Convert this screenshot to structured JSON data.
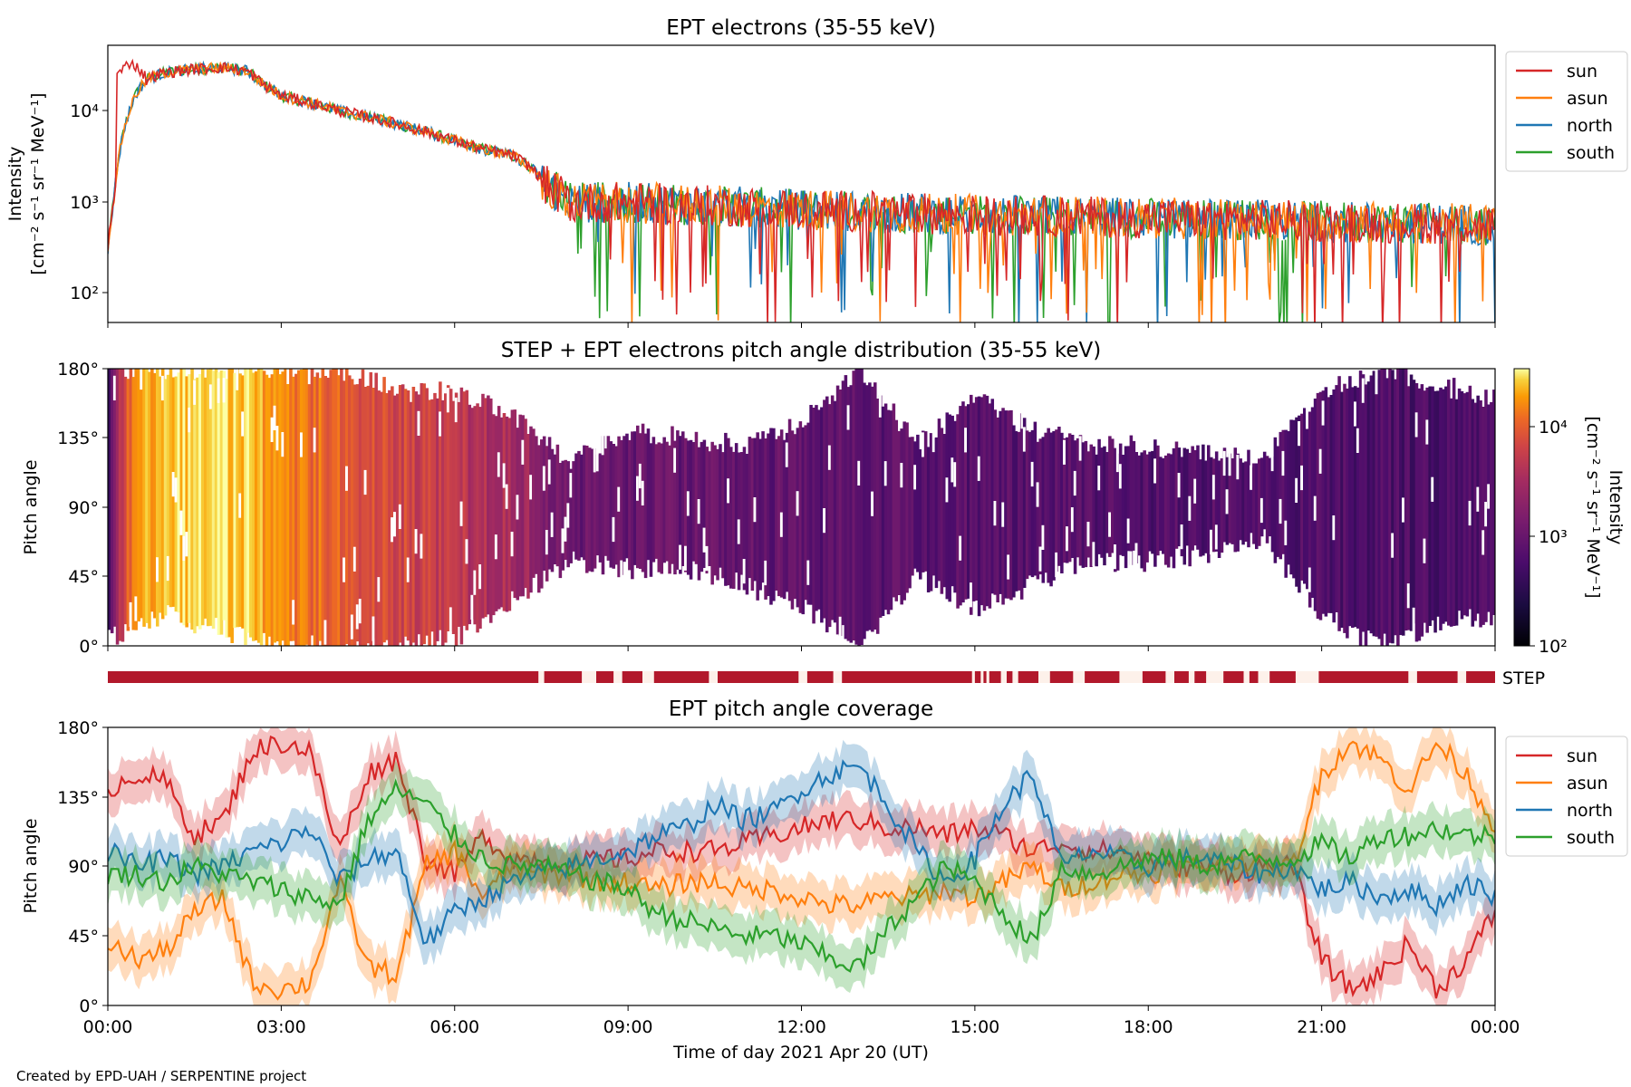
{
  "footer": "Created by EPD-UAH / SERPENTINE project",
  "xlabel": "Time of day 2021 Apr 20 (UT)",
  "x_ticks": [
    "00:00",
    "03:00",
    "06:00",
    "09:00",
    "12:00",
    "15:00",
    "18:00",
    "21:00",
    "00:00"
  ],
  "colors": {
    "sun": "#d62728",
    "asun": "#ff7f0e",
    "north": "#1f77b4",
    "south": "#2ca02c",
    "step_bar": "#b2182b"
  },
  "chart_data": [
    {
      "type": "line",
      "title": "EPT electrons (35-55 keV)",
      "ylabel_lines": [
        "Intensity",
        "[cm⁻² s⁻¹ sr⁻¹ MeV⁻¹]"
      ],
      "yscale": "log",
      "ylim": [
        50,
        45000
      ],
      "y_ticks": [
        "10²",
        "10³",
        "10⁴"
      ],
      "xlim_hours": [
        0,
        24
      ],
      "legend": {
        "placement": "outside-right",
        "entries": [
          "sun",
          "asun",
          "north",
          "south"
        ]
      },
      "profile_hours": [
        0.0,
        0.1,
        0.2,
        0.35,
        0.5,
        0.7,
        1.0,
        1.5,
        2.0,
        2.4,
        2.7,
        3.0,
        4.0,
        5.0,
        6.0,
        6.5,
        7.0,
        7.3,
        7.6,
        8.0,
        9.0,
        10.0,
        12.0,
        15.0,
        18.0,
        21.0,
        24.0
      ],
      "profile_values": [
        300,
        900,
        3000,
        8000,
        14000,
        20000,
        23000,
        25000,
        26000,
        24000,
        17000,
        13000,
        9000,
        6500,
        4300,
        3500,
        3000,
        2300,
        1400,
        950,
        950,
        900,
        800,
        700,
        650,
        600,
        550
      ],
      "series": [
        {
          "name": "sun",
          "peak": 30000,
          "peak_hour": 0.4
        },
        {
          "name": "asun",
          "peak": 24000,
          "peak_hour": 1.8
        },
        {
          "name": "north",
          "peak": 25000,
          "peak_hour": 1.7
        },
        {
          "name": "south",
          "peak": 23000,
          "peak_hour": 1.8
        }
      ]
    },
    {
      "type": "heatmap",
      "title": "STEP + EPT electrons pitch angle distribution (35-55 keV)",
      "ylabel": "Pitch angle",
      "y_ticks": [
        "0°",
        "45°",
        "90°",
        "135°",
        "180°"
      ],
      "ylim_deg": [
        0,
        180
      ],
      "colorbar": {
        "label": "Intensity",
        "unit": "[cm⁻² s⁻¹ sr⁻¹ MeV⁻¹]",
        "ticks": [
          "10²",
          "10³",
          "10⁴"
        ],
        "range": [
          100,
          30000
        ],
        "scale": "log",
        "colormap": "inferno"
      },
      "band_hours": [
        0,
        1,
        2,
        3,
        4,
        5,
        6,
        7,
        8,
        9,
        10,
        11,
        12,
        13,
        14,
        15,
        16,
        17,
        18,
        19,
        20,
        21,
        22,
        23,
        24
      ],
      "band_min_deg": [
        5,
        20,
        10,
        0,
        0,
        0,
        5,
        30,
        55,
        50,
        50,
        40,
        25,
        0,
        45,
        25,
        40,
        55,
        55,
        60,
        70,
        20,
        0,
        15,
        20
      ],
      "band_max_deg": [
        180,
        180,
        180,
        180,
        180,
        165,
        165,
        150,
        120,
        140,
        135,
        130,
        145,
        180,
        130,
        160,
        140,
        130,
        130,
        125,
        120,
        165,
        180,
        170,
        160
      ]
    },
    {
      "type": "bar",
      "label": "STEP",
      "coverage_hours": [
        [
          0.0,
          7.45
        ],
        [
          7.55,
          8.2
        ],
        [
          8.45,
          8.75
        ],
        [
          8.9,
          9.25
        ],
        [
          9.45,
          10.4
        ],
        [
          10.55,
          11.95
        ],
        [
          12.1,
          12.55
        ],
        [
          12.7,
          14.95
        ],
        [
          15.0,
          15.1
        ],
        [
          15.15,
          15.2
        ],
        [
          15.25,
          15.45
        ],
        [
          15.55,
          15.65
        ],
        [
          15.75,
          16.1
        ],
        [
          16.3,
          16.7
        ],
        [
          16.9,
          17.5
        ],
        [
          17.9,
          18.3
        ],
        [
          18.45,
          18.7
        ],
        [
          18.8,
          19.0
        ],
        [
          19.3,
          19.65
        ],
        [
          19.75,
          19.9
        ],
        [
          20.1,
          20.55
        ],
        [
          20.95,
          22.5
        ],
        [
          22.65,
          23.35
        ],
        [
          23.5,
          24.0
        ]
      ]
    },
    {
      "type": "line",
      "title": "EPT pitch angle coverage",
      "ylabel": "Pitch angle",
      "y_ticks": [
        "0°",
        "45°",
        "90°",
        "135°",
        "180°"
      ],
      "ylim_deg": [
        0,
        180
      ],
      "xlim_hours": [
        0,
        24
      ],
      "legend": {
        "placement": "outside-right",
        "entries": [
          "sun",
          "asun",
          "north",
          "south"
        ]
      },
      "x_hours": [
        0,
        0.5,
        1,
        1.5,
        2,
        2.5,
        3,
        3.5,
        4,
        4.5,
        5,
        5.5,
        6,
        6.5,
        7,
        7.5,
        8,
        8.5,
        9,
        9.5,
        10,
        10.5,
        11,
        11.5,
        12,
        12.5,
        13,
        13.5,
        14,
        14.5,
        15,
        15.5,
        16,
        16.5,
        17,
        17.5,
        18,
        18.5,
        19,
        19.5,
        20,
        20.5,
        21,
        21.5,
        22,
        22.5,
        23,
        23.5,
        24
      ],
      "series": [
        {
          "name": "sun",
          "values": [
            140,
            150,
            145,
            110,
            120,
            165,
            170,
            165,
            100,
            150,
            160,
            95,
            85,
            110,
            95,
            95,
            90,
            95,
            95,
            100,
            100,
            100,
            105,
            110,
            115,
            120,
            120,
            115,
            115,
            110,
            115,
            110,
            100,
            105,
            100,
            100,
            95,
            90,
            90,
            85,
            90,
            90,
            30,
            10,
            20,
            40,
            10,
            30,
            60
          ]
        },
        {
          "name": "asun",
          "values": [
            40,
            30,
            35,
            60,
            70,
            15,
            10,
            15,
            80,
            25,
            20,
            90,
            100,
            70,
            90,
            85,
            85,
            80,
            80,
            75,
            80,
            80,
            75,
            75,
            70,
            65,
            65,
            70,
            70,
            75,
            70,
            80,
            90,
            75,
            80,
            85,
            85,
            90,
            90,
            95,
            90,
            90,
            150,
            170,
            160,
            140,
            170,
            150,
            115
          ]
        },
        {
          "name": "north",
          "values": [
            100,
            90,
            95,
            85,
            90,
            100,
            105,
            115,
            80,
            95,
            100,
            40,
            60,
            70,
            80,
            85,
            90,
            95,
            100,
            110,
            115,
            130,
            120,
            125,
            140,
            150,
            155,
            130,
            100,
            80,
            95,
            130,
            150,
            90,
            100,
            95,
            90,
            95,
            95,
            90,
            85,
            90,
            75,
            80,
            70,
            75,
            65,
            80,
            70
          ]
        },
        {
          "name": "south",
          "values": [
            85,
            85,
            80,
            90,
            85,
            80,
            75,
            70,
            65,
            120,
            140,
            130,
            110,
            95,
            90,
            90,
            85,
            80,
            75,
            60,
            55,
            50,
            45,
            45,
            40,
            30,
            25,
            50,
            70,
            90,
            80,
            60,
            40,
            90,
            85,
            90,
            95,
            95,
            90,
            95,
            95,
            95,
            105,
            95,
            110,
            110,
            115,
            110,
            110
          ]
        }
      ]
    }
  ]
}
